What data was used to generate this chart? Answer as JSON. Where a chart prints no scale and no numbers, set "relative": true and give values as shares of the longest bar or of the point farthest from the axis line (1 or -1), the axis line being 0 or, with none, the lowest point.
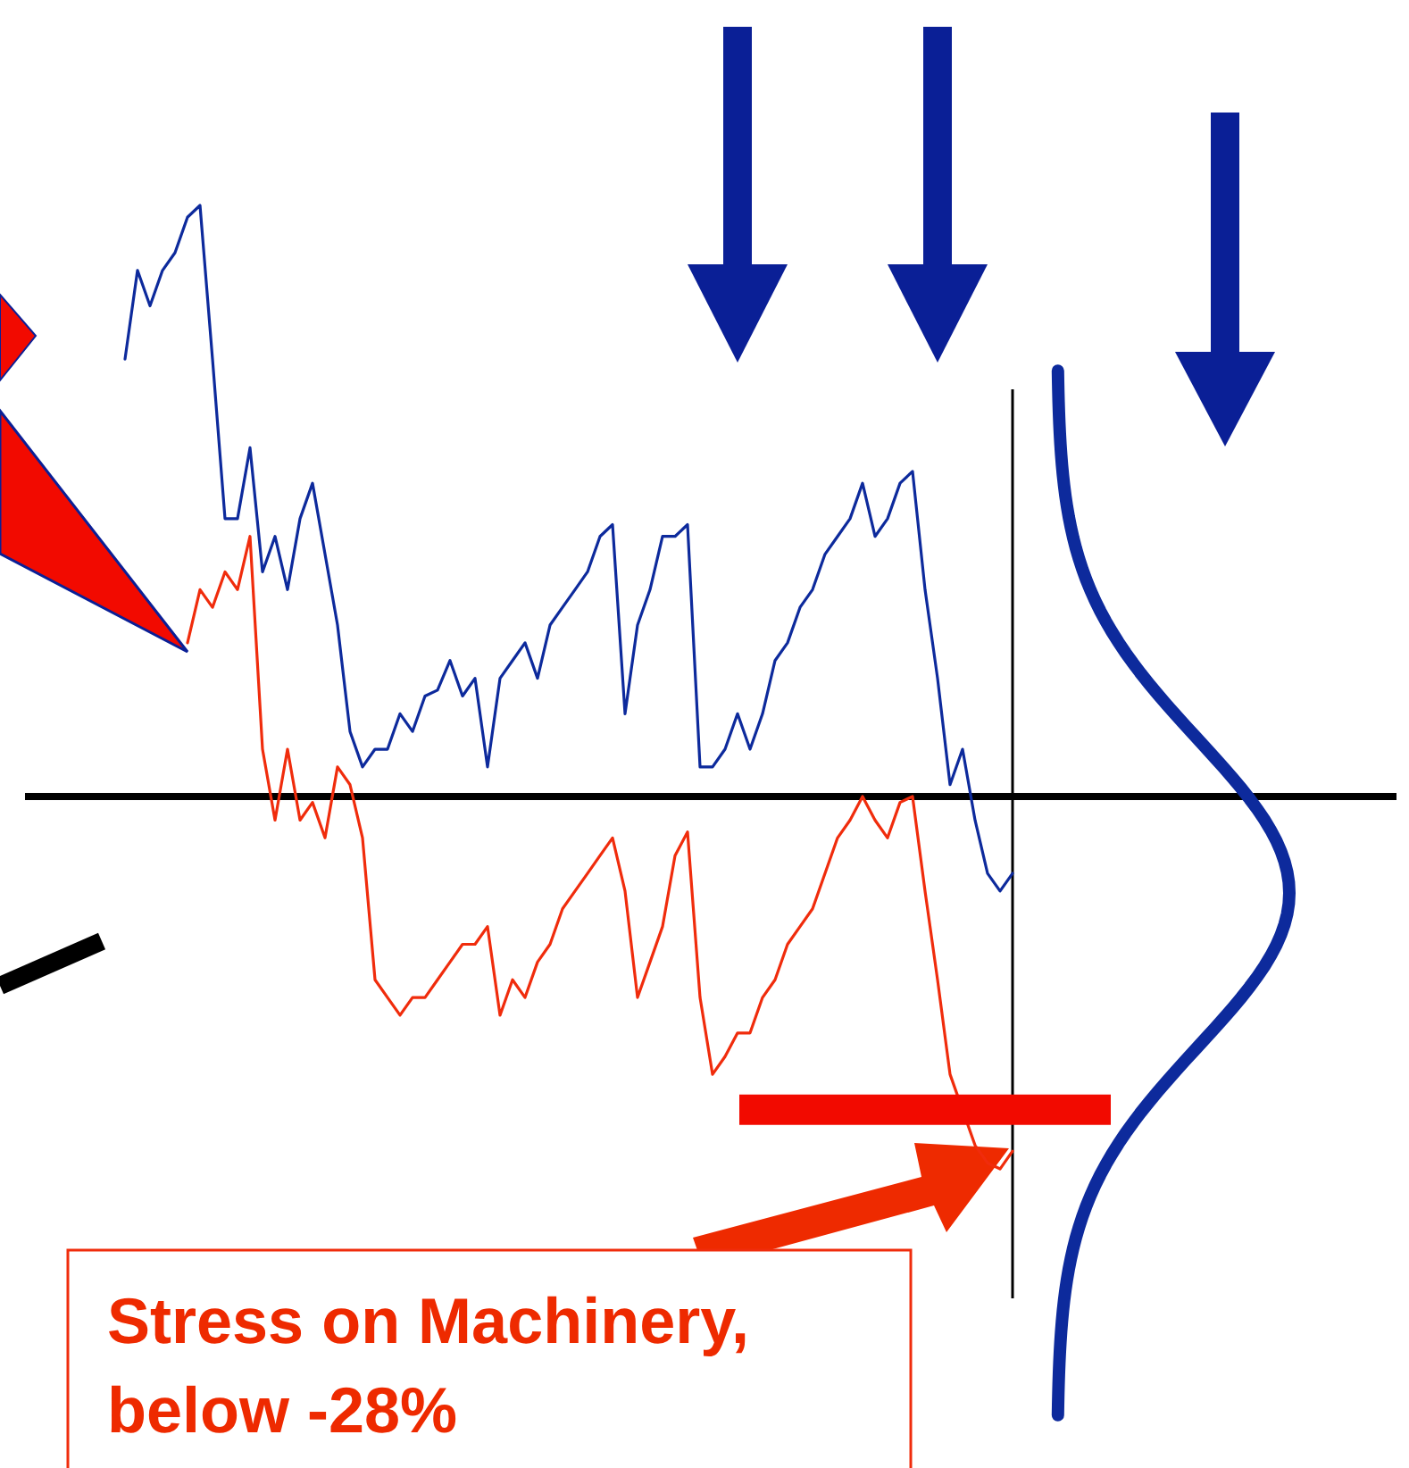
{
  "chart_data": {
    "type": "line",
    "relative": true,
    "categories": [
      null,
      null,
      null,
      null,
      null,
      null,
      null,
      null,
      null,
      null,
      null,
      null,
      null,
      null,
      null,
      null,
      null,
      null,
      null,
      null,
      null,
      null,
      null,
      null,
      null,
      null,
      null,
      null,
      null,
      null,
      null,
      null,
      null,
      null,
      null,
      null,
      null,
      null,
      null,
      null,
      null,
      null,
      null,
      null,
      null,
      null,
      null,
      null,
      null,
      null,
      null,
      null,
      null,
      null,
      null,
      null,
      null,
      null,
      null,
      null,
      null,
      null,
      null,
      null,
      null,
      null,
      null,
      null,
      null,
      null,
      null,
      null
    ],
    "series": [
      {
        "color": "#0d2a9c",
        "values": [
          0.74,
          0.89,
          0.83,
          0.89,
          0.92,
          0.98,
          1.0,
          0.74,
          0.47,
          0.47,
          0.59,
          0.38,
          0.44,
          0.35,
          0.47,
          0.53,
          0.41,
          0.29,
          0.11,
          0.05,
          0.08,
          0.08,
          0.14,
          0.11,
          0.17,
          0.18,
          0.23,
          0.17,
          0.2,
          0.05,
          0.2,
          0.23,
          0.26,
          0.2,
          0.29,
          0.32,
          0.35,
          0.38,
          0.44,
          0.46,
          0.14,
          0.29,
          0.35,
          0.44,
          0.44,
          0.46,
          0.05,
          0.05,
          0.08,
          0.14,
          0.08,
          0.14,
          0.23,
          0.26,
          0.32,
          0.35,
          0.41,
          0.44,
          0.47,
          0.53,
          0.44,
          0.47,
          0.53,
          0.55,
          0.35,
          0.2,
          0.02,
          0.08,
          -0.04,
          -0.13,
          -0.16,
          -0.13
        ]
      },
      {
        "color": "#f02c0c",
        "values": [
          null,
          null,
          null,
          null,
          null,
          0.26,
          0.35,
          0.32,
          0.38,
          0.35,
          0.44,
          0.08,
          -0.04,
          0.08,
          -0.04,
          -0.01,
          -0.07,
          0.05,
          0.02,
          -0.07,
          -0.31,
          -0.34,
          -0.37,
          -0.34,
          -0.34,
          -0.31,
          -0.28,
          -0.25,
          -0.25,
          -0.22,
          -0.37,
          -0.31,
          -0.34,
          -0.28,
          -0.25,
          -0.19,
          -0.16,
          -0.13,
          -0.1,
          -0.07,
          -0.16,
          -0.34,
          -0.28,
          -0.22,
          -0.1,
          -0.06,
          -0.34,
          -0.47,
          -0.44,
          -0.4,
          -0.4,
          -0.34,
          -0.31,
          -0.25,
          -0.22,
          -0.19,
          -0.13,
          -0.07,
          -0.04,
          0.0,
          -0.04,
          -0.07,
          -0.01,
          0.0,
          -0.16,
          -0.31,
          -0.47,
          -0.53,
          -0.59,
          -0.62,
          -0.63,
          -0.6
        ]
      }
    ],
    "ref_lines": [
      {
        "axis": "y",
        "value": -0.53,
        "color": "#f20a00"
      }
    ],
    "annotations": [
      "Stress on Machinery, below -28%"
    ]
  }
}
